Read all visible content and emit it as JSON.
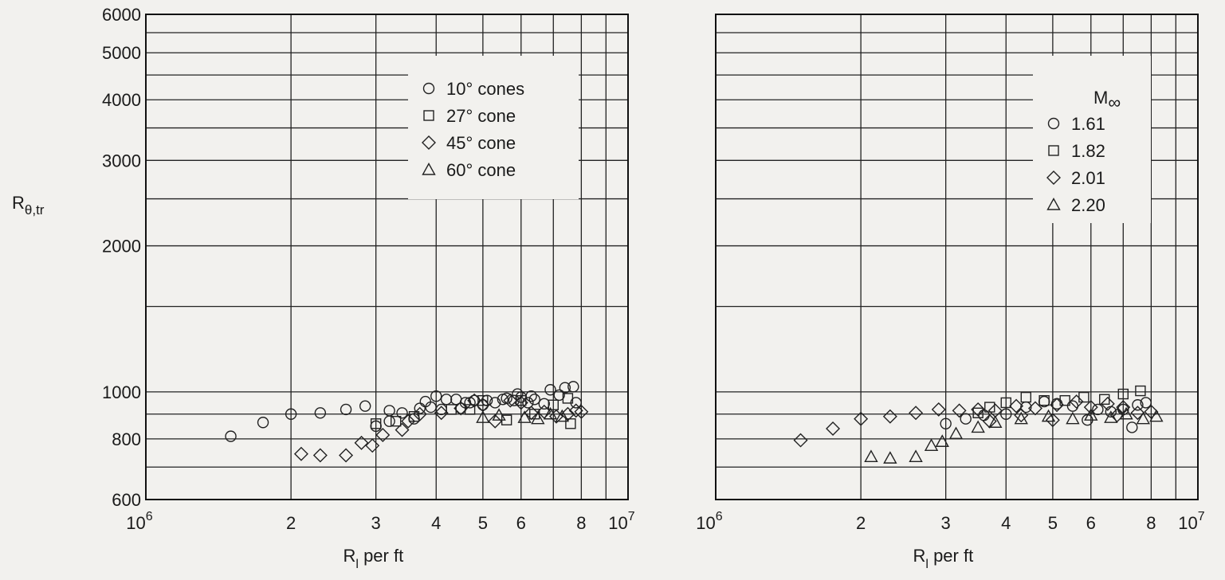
{
  "chart_data": [
    {
      "type": "scatter",
      "xlabel": "R_l per ft",
      "ylabel": "R_θ,tr",
      "xscale": "log",
      "yscale": "log",
      "xlim": [
        1000000,
        10000000
      ],
      "ylim": [
        600,
        6000
      ],
      "x_ticks": [
        "10^6",
        "2",
        "3",
        "4",
        "5",
        "6",
        "8",
        "10^7"
      ],
      "y_ticks": [
        "600",
        "800",
        "1000",
        "2000",
        "3000",
        "4000",
        "5000",
        "6000"
      ],
      "legend": {
        "position": "top-right",
        "title": "",
        "entries": [
          {
            "marker": "circle",
            "label": "10° cones"
          },
          {
            "marker": "square",
            "label": "27° cone"
          },
          {
            "marker": "diamond",
            "label": "45° cone"
          },
          {
            "marker": "triangle",
            "label": "60° cone"
          }
        ]
      },
      "series": [
        {
          "name": "10° cones",
          "marker": "circle",
          "points": [
            [
              1500000,
              810
            ],
            [
              1750000,
              865
            ],
            [
              2000000,
              900
            ],
            [
              2300000,
              905
            ],
            [
              2600000,
              920
            ],
            [
              2850000,
              935
            ],
            [
              3000000,
              850
            ],
            [
              3200000,
              870
            ],
            [
              3200000,
              915
            ],
            [
              3400000,
              905
            ],
            [
              3600000,
              880
            ],
            [
              3700000,
              925
            ],
            [
              3800000,
              955
            ],
            [
              3900000,
              930
            ],
            [
              4100000,
              920
            ],
            [
              4200000,
              965
            ],
            [
              4400000,
              965
            ],
            [
              4500000,
              925
            ],
            [
              4700000,
              950
            ],
            [
              4800000,
              960
            ],
            [
              5000000,
              940
            ],
            [
              5100000,
              960
            ],
            [
              5300000,
              950
            ],
            [
              5500000,
              965
            ],
            [
              5600000,
              970
            ],
            [
              5800000,
              960
            ],
            [
              6000000,
              975
            ],
            [
              6200000,
              950
            ],
            [
              6400000,
              965
            ],
            [
              6700000,
              945
            ],
            [
              6900000,
              1010
            ],
            [
              7200000,
              985
            ],
            [
              7400000,
              1020
            ],
            [
              7700000,
              1025
            ],
            [
              7800000,
              950
            ],
            [
              4000000,
              980
            ],
            [
              4600000,
              950
            ],
            [
              5900000,
              990
            ],
            [
              6300000,
              980
            ]
          ]
        },
        {
          "name": "27° cone",
          "marker": "square",
          "points": [
            [
              3000000,
              860
            ],
            [
              3300000,
              870
            ],
            [
              3600000,
              890
            ],
            [
              4300000,
              920
            ],
            [
              4700000,
              920
            ],
            [
              5000000,
              960
            ],
            [
              5600000,
              875
            ],
            [
              6000000,
              960
            ],
            [
              6400000,
              900
            ],
            [
              7000000,
              940
            ],
            [
              7500000,
              970
            ],
            [
              7600000,
              860
            ]
          ]
        },
        {
          "name": "45° cone",
          "marker": "diamond",
          "points": [
            [
              2100000,
              745
            ],
            [
              2300000,
              740
            ],
            [
              2600000,
              740
            ],
            [
              2800000,
              785
            ],
            [
              2950000,
              775
            ],
            [
              3100000,
              815
            ],
            [
              3400000,
              835
            ],
            [
              3500000,
              870
            ],
            [
              3700000,
              900
            ],
            [
              4100000,
              905
            ],
            [
              4500000,
              925
            ],
            [
              4800000,
              960
            ],
            [
              5000000,
              940
            ],
            [
              5300000,
              870
            ],
            [
              5700000,
              960
            ],
            [
              6000000,
              950
            ],
            [
              6300000,
              905
            ],
            [
              6700000,
              910
            ],
            [
              7100000,
              890
            ],
            [
              7500000,
              900
            ],
            [
              7800000,
              915
            ],
            [
              8000000,
              910
            ]
          ]
        },
        {
          "name": "60° cone",
          "marker": "triangle",
          "points": [
            [
              5000000,
              885
            ],
            [
              5400000,
              895
            ],
            [
              6100000,
              885
            ],
            [
              6500000,
              880
            ],
            [
              6900000,
              900
            ],
            [
              7300000,
              890
            ]
          ]
        }
      ]
    },
    {
      "type": "scatter",
      "xlabel": "R_l per ft",
      "ylabel": "",
      "xscale": "log",
      "yscale": "log",
      "xlim": [
        1000000,
        10000000
      ],
      "ylim": [
        600,
        6000
      ],
      "x_ticks": [
        "10^6",
        "2",
        "3",
        "4",
        "5",
        "6",
        "8",
        "10^7"
      ],
      "y_ticks": [],
      "legend": {
        "position": "top-right",
        "title": "M∞",
        "entries": [
          {
            "marker": "circle",
            "label": "1.61"
          },
          {
            "marker": "square",
            "label": "1.82"
          },
          {
            "marker": "diamond",
            "label": "2.01"
          },
          {
            "marker": "triangle",
            "label": "2.20"
          }
        ]
      },
      "series": [
        {
          "name": "1.61",
          "marker": "circle",
          "points": [
            [
              3000000,
              860
            ],
            [
              3300000,
              880
            ],
            [
              3600000,
              895
            ],
            [
              4000000,
              900
            ],
            [
              4400000,
              930
            ],
            [
              4800000,
              955
            ],
            [
              5100000,
              945
            ],
            [
              5500000,
              935
            ],
            [
              5900000,
              875
            ],
            [
              6200000,
              920
            ],
            [
              6600000,
              910
            ],
            [
              7000000,
              920
            ],
            [
              7300000,
              845
            ],
            [
              7500000,
              940
            ],
            [
              7800000,
              950
            ]
          ]
        },
        {
          "name": "1.82",
          "marker": "square",
          "points": [
            [
              3500000,
              905
            ],
            [
              3700000,
              930
            ],
            [
              4000000,
              950
            ],
            [
              4400000,
              975
            ],
            [
              4800000,
              960
            ],
            [
              5300000,
              960
            ],
            [
              5800000,
              975
            ],
            [
              6400000,
              965
            ],
            [
              7000000,
              990
            ],
            [
              7600000,
              1005
            ]
          ]
        },
        {
          "name": "2.01",
          "marker": "diamond",
          "points": [
            [
              1500000,
              795
            ],
            [
              1750000,
              840
            ],
            [
              2000000,
              880
            ],
            [
              2300000,
              890
            ],
            [
              2600000,
              905
            ],
            [
              2900000,
              920
            ],
            [
              3200000,
              915
            ],
            [
              3500000,
              920
            ],
            [
              3800000,
              915
            ],
            [
              4200000,
              935
            ],
            [
              4600000,
              925
            ],
            [
              5100000,
              940
            ],
            [
              5600000,
              955
            ],
            [
              6000000,
              930
            ],
            [
              6500000,
              945
            ],
            [
              7000000,
              930
            ],
            [
              7500000,
              905
            ],
            [
              8000000,
              910
            ],
            [
              3700000,
              870
            ],
            [
              4300000,
              895
            ],
            [
              5000000,
              875
            ],
            [
              6800000,
              895
            ]
          ]
        },
        {
          "name": "2.20",
          "marker": "triangle",
          "points": [
            [
              2100000,
              735
            ],
            [
              2300000,
              730
            ],
            [
              2600000,
              735
            ],
            [
              2800000,
              775
            ],
            [
              2950000,
              790
            ],
            [
              3150000,
              820
            ],
            [
              3500000,
              845
            ],
            [
              3800000,
              865
            ],
            [
              4300000,
              880
            ],
            [
              4900000,
              890
            ],
            [
              5500000,
              880
            ],
            [
              6000000,
              895
            ],
            [
              6600000,
              885
            ],
            [
              7100000,
              900
            ],
            [
              7700000,
              880
            ],
            [
              8200000,
              890
            ]
          ]
        }
      ]
    }
  ]
}
